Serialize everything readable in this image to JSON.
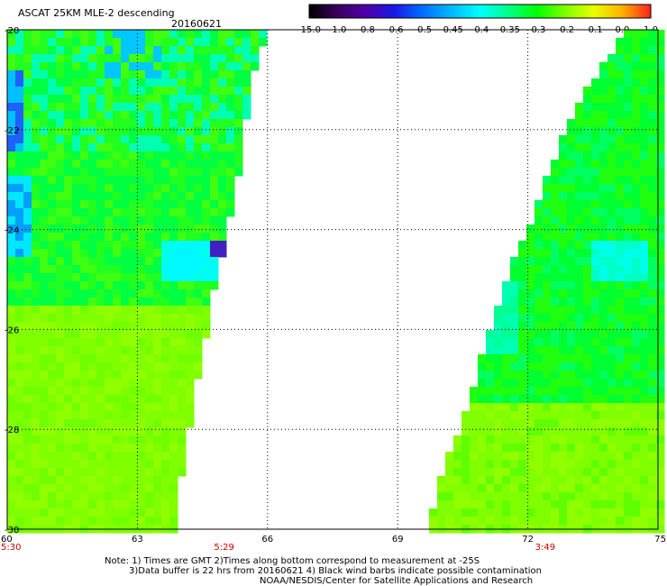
{
  "header": {
    "title": "ASCAT 25KM MLE-2 descending",
    "date": "20160621"
  },
  "colorbar": {
    "labels": [
      "-15.0",
      "-1.0",
      "-0.8",
      "-0.6",
      "-0.5",
      "-0.45",
      "-0.4",
      "-0.35",
      "-0.3",
      "-0.2",
      "-0.1",
      "0.0",
      "1.0"
    ],
    "colors": [
      "#000000",
      "#3a0060",
      "#5000a8",
      "#1818e8",
      "#0070ff",
      "#00b8ff",
      "#00ffff",
      "#00ff88",
      "#00ff00",
      "#80ff00",
      "#e8ff00",
      "#ffb000",
      "#ff2020"
    ]
  },
  "axes": {
    "lon_ticks": [
      "60",
      "63",
      "66",
      "69",
      "72",
      "75"
    ],
    "lat_ticks": [
      "-20",
      "-22",
      "-24",
      "-26",
      "-28",
      "-30"
    ],
    "lon_range": [
      60,
      75
    ],
    "lat_range": [
      -30,
      -20
    ]
  },
  "times": [
    {
      "label": "5:30",
      "lon": 60
    },
    {
      "label": "5:29",
      "lon": 65
    },
    {
      "label": "3:49",
      "lon": 72.4
    }
  ],
  "notes": {
    "line1": "Note: 1) Times are GMT 2)Times along bottom correspond to measurement at -25S",
    "line2": "3)Data buffer is 22 hrs from 20160621 4) Black wind barbs indicate possible contamination",
    "line3": "NOAA/NESDIS/Center for Satellite Applications and Research"
  },
  "swaths": {
    "west_edge": [
      [
        -20,
        66.0
      ],
      [
        -21,
        65.6
      ],
      [
        -22,
        65.5
      ],
      [
        -23,
        65.3
      ],
      [
        -24,
        65.1
      ],
      [
        -25,
        64.8
      ],
      [
        -26,
        64.6
      ],
      [
        -27,
        64.4
      ],
      [
        -28,
        64.2
      ],
      [
        -29,
        64.0
      ],
      [
        -30,
        64.0
      ]
    ],
    "east_edge": [
      [
        -20,
        74.3
      ],
      [
        -21,
        73.5
      ],
      [
        -22,
        72.9
      ],
      [
        -23,
        72.4
      ],
      [
        -24,
        72.0
      ],
      [
        -25,
        71.5
      ],
      [
        -26,
        71.1
      ],
      [
        -27,
        70.8
      ],
      [
        -28,
        70.4
      ],
      [
        -29,
        70.0
      ],
      [
        -30,
        69.7
      ]
    ]
  }
}
